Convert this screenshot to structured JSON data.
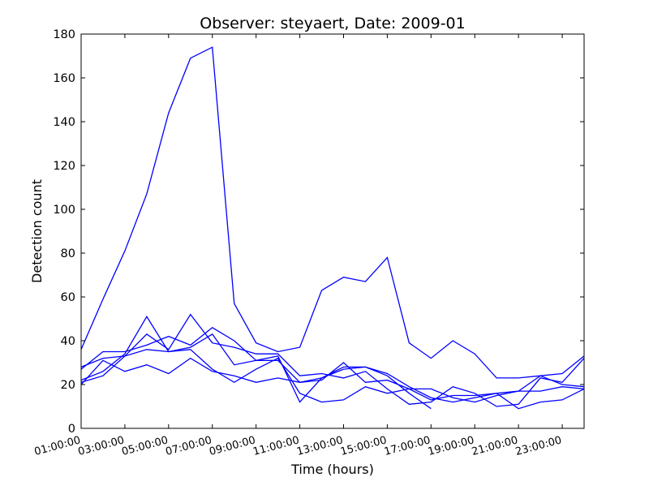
{
  "chart_data": {
    "type": "line",
    "title": "Observer: steyaert, Date: 2009-01",
    "xlabel": "Time (hours)",
    "ylabel": "Detection count",
    "ylim": [
      0,
      180
    ],
    "xlim": [
      1,
      24
    ],
    "yticks": [
      0,
      20,
      40,
      60,
      80,
      100,
      120,
      140,
      160,
      180
    ],
    "xticks": [
      {
        "value": 1,
        "label": "01:00:00"
      },
      {
        "value": 3,
        "label": "03:00:00"
      },
      {
        "value": 5,
        "label": "05:00:00"
      },
      {
        "value": 7,
        "label": "07:00:00"
      },
      {
        "value": 9,
        "label": "09:00:00"
      },
      {
        "value": 11,
        "label": "11:00:00"
      },
      {
        "value": 13,
        "label": "13:00:00"
      },
      {
        "value": 15,
        "label": "15:00:00"
      },
      {
        "value": 17,
        "label": "17:00:00"
      },
      {
        "value": 19,
        "label": "19:00:00"
      },
      {
        "value": 21,
        "label": "21:00:00"
      },
      {
        "value": 23,
        "label": "23:00:00"
      }
    ],
    "grid": false,
    "line_color": "#0000ff",
    "x": [
      1,
      2,
      3,
      4,
      5,
      6,
      7,
      8,
      9,
      10,
      11,
      12,
      13,
      14,
      15,
      16,
      17,
      18,
      19,
      20,
      21,
      22,
      23,
      24
    ],
    "series": [
      {
        "values": [
          36,
          59,
          81,
          107,
          144,
          169,
          174,
          57,
          39,
          35,
          37,
          63,
          69,
          67,
          78,
          39,
          32,
          40,
          34,
          23,
          23,
          24,
          25,
          33
        ]
      },
      {
        "values": [
          27,
          35,
          35,
          38,
          42,
          38,
          46,
          40,
          31,
          33,
          12,
          23,
          28,
          28,
          24,
          16,
          9,
          null,
          null,
          null,
          null,
          null,
          null,
          null
        ]
      },
      {
        "values": [
          28,
          32,
          33,
          43,
          36,
          52,
          39,
          37,
          34,
          34,
          24,
          25,
          23,
          26,
          18,
          11,
          12,
          19,
          16,
          10,
          11,
          23,
          21,
          32
        ]
      },
      {
        "values": [
          22,
          26,
          34,
          51,
          35,
          37,
          43,
          29,
          31,
          31,
          21,
          22,
          30,
          21,
          22,
          18,
          13,
          15,
          15,
          16,
          9,
          12,
          13,
          18
        ]
      },
      {
        "values": [
          21,
          24,
          33,
          36,
          35,
          36,
          27,
          21,
          27,
          32,
          16,
          12,
          13,
          19,
          16,
          18,
          18,
          14,
          12,
          15,
          17,
          17,
          19,
          18
        ]
      },
      {
        "values": [
          20,
          31,
          26,
          29,
          25,
          32,
          26,
          24,
          21,
          23,
          21,
          23,
          27,
          28,
          25,
          19,
          14,
          12,
          14,
          16,
          17,
          24,
          20,
          19
        ]
      }
    ]
  }
}
